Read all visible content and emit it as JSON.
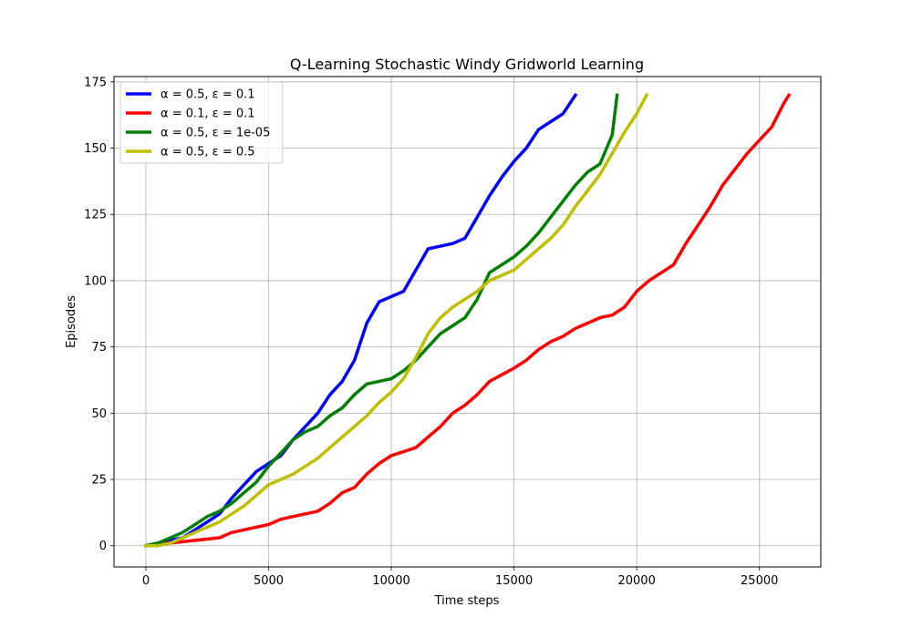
{
  "chart_data": {
    "type": "line",
    "title": "Q-Learning Stochastic Windy Gridworld Learning",
    "xlabel": "Time steps",
    "ylabel": "Episodes",
    "xlim": [
      -1300,
      27500
    ],
    "ylim": [
      -8,
      177
    ],
    "xticks": [
      0,
      5000,
      10000,
      15000,
      20000,
      25000
    ],
    "yticks": [
      0,
      25,
      50,
      75,
      100,
      125,
      150,
      175
    ],
    "grid": true,
    "legend_position": "upper-left",
    "series": [
      {
        "name": "α = 0.5, ε = 0.1",
        "color": "#0000ff",
        "x": [
          0,
          500,
          1000,
          1500,
          2000,
          2500,
          3000,
          3500,
          4000,
          4500,
          5000,
          5500,
          6000,
          6500,
          7000,
          7500,
          8000,
          8500,
          9000,
          9500,
          10000,
          10500,
          11000,
          11500,
          12000,
          12500,
          13000,
          13500,
          14000,
          14500,
          15000,
          15500,
          16000,
          16500,
          17000,
          17500
        ],
        "y": [
          0,
          1,
          2,
          3,
          6,
          9,
          12,
          18,
          23,
          28,
          31,
          34,
          40,
          45,
          50,
          57,
          62,
          70,
          84,
          92,
          94,
          96,
          104,
          112,
          113,
          114,
          116,
          124,
          132,
          139,
          145,
          150,
          157,
          160,
          163,
          170
        ]
      },
      {
        "name": "α = 0.1, ε = 0.1",
        "color": "#ff0000",
        "x": [
          0,
          1000,
          2000,
          3000,
          3500,
          4000,
          5000,
          5500,
          6000,
          7000,
          7500,
          8000,
          8500,
          9000,
          9500,
          10000,
          11000,
          11500,
          12000,
          12500,
          13000,
          13500,
          14000,
          15000,
          15500,
          16000,
          16500,
          17000,
          17500,
          18000,
          18500,
          19000,
          19500,
          20000,
          20500,
          21000,
          21500,
          22000,
          22500,
          23000,
          23500,
          24000,
          24500,
          25000,
          25500,
          26000,
          26200
        ],
        "y": [
          0,
          1,
          2,
          3,
          5,
          6,
          8,
          10,
          11,
          13,
          16,
          20,
          22,
          27,
          31,
          34,
          37,
          41,
          45,
          50,
          53,
          57,
          62,
          67,
          70,
          74,
          77,
          79,
          82,
          84,
          86,
          87,
          90,
          96,
          100,
          103,
          106,
          114,
          121,
          128,
          136,
          142,
          148,
          153,
          158,
          167,
          170
        ]
      },
      {
        "name": "α = 0.5, ε = 1e-05",
        "color": "#008000",
        "x": [
          0,
          500,
          1000,
          1500,
          2000,
          2500,
          3000,
          3500,
          4000,
          4500,
          5000,
          5500,
          6000,
          6500,
          7000,
          7500,
          8000,
          8500,
          9000,
          9500,
          10000,
          10500,
          11000,
          11500,
          12000,
          12500,
          13000,
          13500,
          14000,
          14500,
          15000,
          15500,
          16000,
          16500,
          17000,
          17500,
          18000,
          18500,
          19000,
          19200
        ],
        "y": [
          0,
          1,
          3,
          5,
          8,
          11,
          13,
          16,
          20,
          24,
          30,
          35,
          40,
          43,
          45,
          49,
          52,
          57,
          61,
          62,
          63,
          66,
          70,
          75,
          80,
          83,
          86,
          93,
          103,
          106,
          109,
          113,
          118,
          124,
          130,
          136,
          141,
          144,
          155,
          170
        ]
      },
      {
        "name": "α = 0.5, ε = 0.5",
        "color": "#bfbf00",
        "x": [
          0,
          500,
          1000,
          1500,
          2000,
          2500,
          3000,
          3500,
          4000,
          4500,
          5000,
          5500,
          6000,
          6500,
          7000,
          7500,
          8000,
          8500,
          9000,
          9500,
          10000,
          10500,
          11000,
          11500,
          12000,
          12500,
          13000,
          13500,
          14000,
          14500,
          15000,
          15500,
          16000,
          16500,
          17000,
          17500,
          18000,
          18500,
          19000,
          19500,
          20000,
          20400
        ],
        "y": [
          0,
          0,
          1,
          3,
          5,
          7,
          9,
          12,
          15,
          19,
          23,
          25,
          27,
          30,
          33,
          37,
          41,
          45,
          49,
          54,
          58,
          63,
          71,
          80,
          86,
          90,
          93,
          96,
          100,
          102,
          104,
          108,
          112,
          116,
          121,
          128,
          134,
          140,
          148,
          156,
          163,
          170
        ]
      }
    ]
  }
}
